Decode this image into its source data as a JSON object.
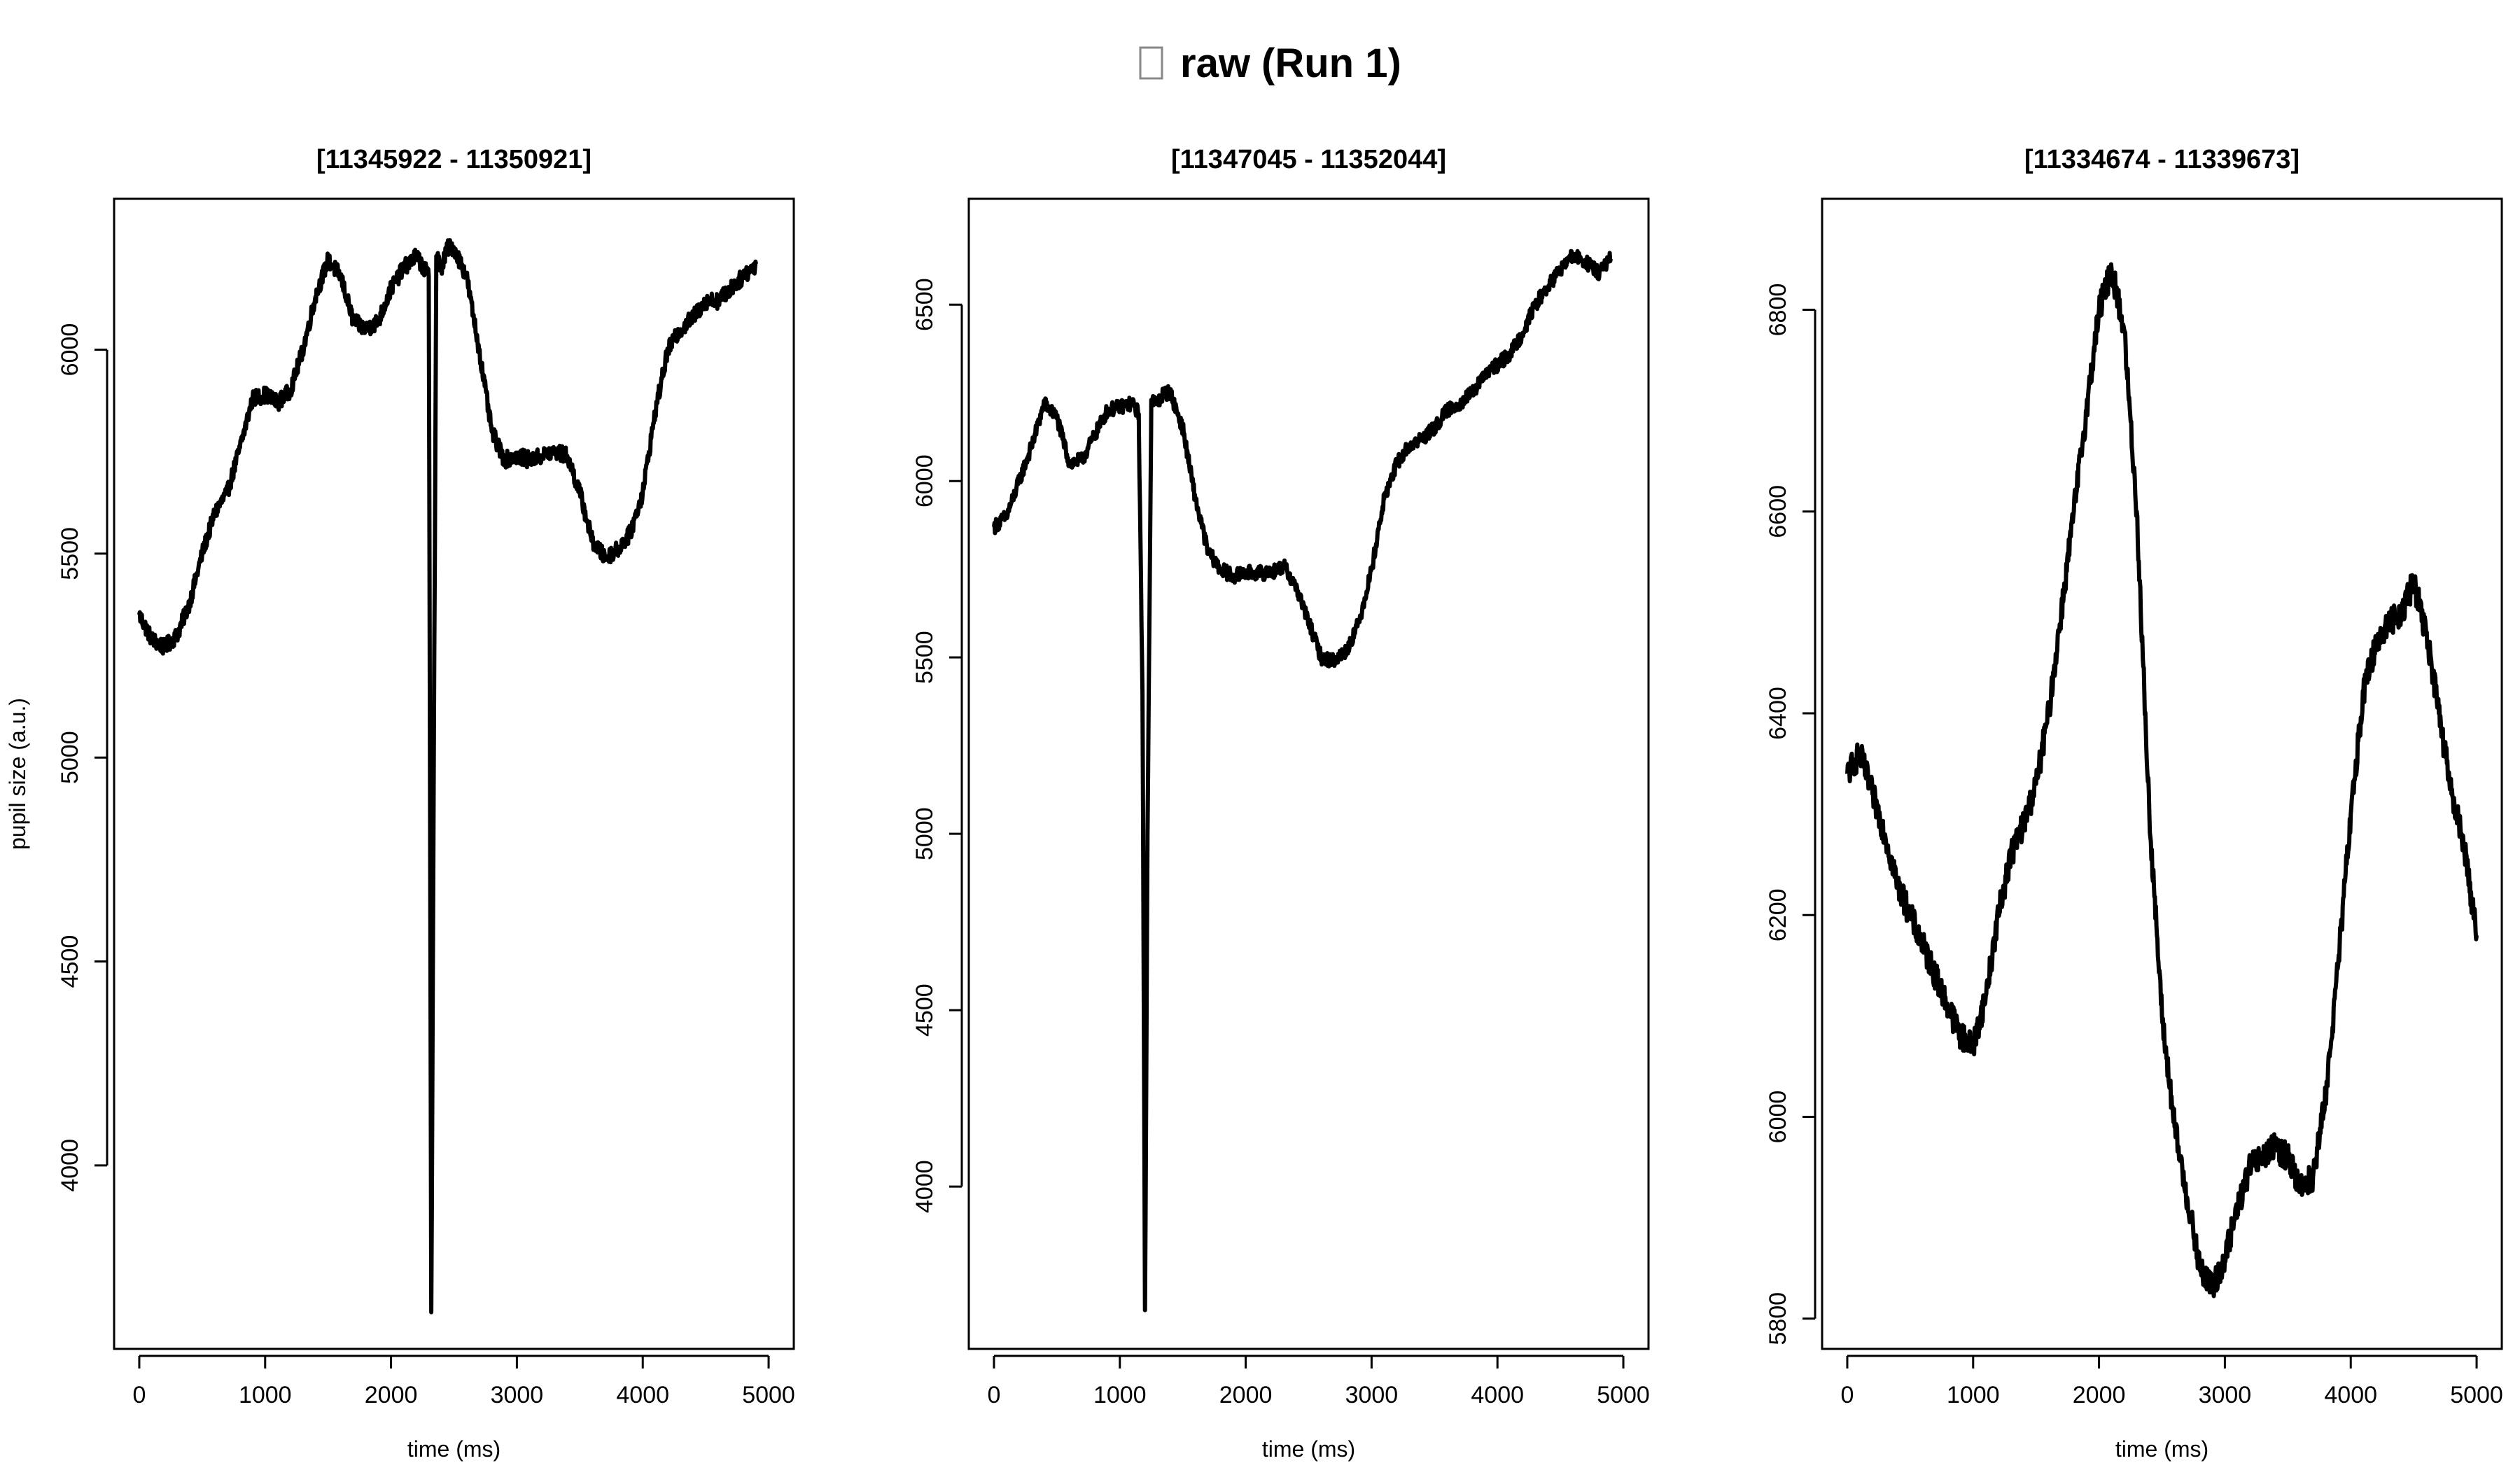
{
  "figure": {
    "title_glyph": "□",
    "title_text": "raw (Run 1)"
  },
  "colors": {
    "background": "#ffffff",
    "line": "#000000",
    "glyph_box": "#888888"
  },
  "chart_data": [
    {
      "type": "line",
      "title": "[11345922 - 11350921]",
      "xlabel": "time (ms)",
      "ylabel": "pupil size (a.u.)",
      "xlim": [
        -200,
        5200
      ],
      "ylim": [
        3550,
        6370
      ],
      "xticks": [
        0,
        1000,
        2000,
        3000,
        4000,
        5000
      ],
      "yticks": [
        4000,
        4500,
        5000,
        5500,
        6000
      ],
      "grid": false,
      "noise": 20,
      "series": [
        {
          "x": [
            0,
            100,
            200,
            300,
            400,
            500,
            600,
            700,
            800,
            900,
            1000,
            1100,
            1200,
            1300,
            1400,
            1500,
            1600,
            1700,
            1800,
            1900,
            2000,
            2100,
            2200,
            2300,
            2320,
            2340,
            2360,
            2400,
            2450,
            2500,
            2600,
            2700,
            2800,
            2900,
            3000,
            3100,
            3200,
            3300,
            3400,
            3500,
            3600,
            3700,
            3800,
            3900,
            4000,
            4100,
            4200,
            4300,
            4400,
            4500,
            4600,
            4700,
            4800,
            4900
          ],
          "y": [
            5350,
            5290,
            5270,
            5300,
            5380,
            5500,
            5600,
            5650,
            5760,
            5880,
            5890,
            5870,
            5900,
            6000,
            6130,
            6220,
            6180,
            6070,
            6050,
            6070,
            6150,
            6200,
            6230,
            6180,
            3640,
            5000,
            6230,
            6200,
            6250,
            6250,
            6180,
            6000,
            5800,
            5730,
            5740,
            5730,
            5740,
            5750,
            5740,
            5650,
            5530,
            5490,
            5510,
            5550,
            5650,
            5850,
            6000,
            6050,
            6080,
            6120,
            6120,
            6150,
            6180,
            6210
          ]
        }
      ]
    },
    {
      "type": "line",
      "title": "[11347045 - 11352044]",
      "xlabel": "time (ms)",
      "ylabel": "",
      "xlim": [
        -200,
        5200
      ],
      "ylim": [
        3540,
        6800
      ],
      "xticks": [
        0,
        1000,
        2000,
        3000,
        4000,
        5000
      ],
      "yticks": [
        4000,
        4500,
        5000,
        5500,
        6000,
        6500
      ],
      "grid": false,
      "noise": 20,
      "series": [
        {
          "x": [
            0,
            100,
            200,
            300,
            400,
            500,
            600,
            700,
            800,
            900,
            1000,
            1100,
            1150,
            1180,
            1200,
            1220,
            1250,
            1300,
            1350,
            1400,
            1500,
            1600,
            1700,
            1800,
            1900,
            2000,
            2100,
            2200,
            2300,
            2400,
            2500,
            2600,
            2700,
            2800,
            2900,
            3000,
            3100,
            3200,
            3300,
            3400,
            3500,
            3600,
            3700,
            3800,
            3900,
            4000,
            4100,
            4200,
            4300,
            4400,
            4500,
            4600,
            4700,
            4800,
            4900
          ],
          "y": [
            5870,
            5900,
            6000,
            6100,
            6220,
            6180,
            6050,
            6060,
            6130,
            6200,
            6210,
            6220,
            6190,
            5400,
            3650,
            5000,
            6230,
            6220,
            6250,
            6250,
            6150,
            5950,
            5800,
            5750,
            5730,
            5740,
            5740,
            5740,
            5760,
            5700,
            5600,
            5500,
            5490,
            5520,
            5600,
            5750,
            5950,
            6050,
            6100,
            6120,
            6150,
            6200,
            6220,
            6250,
            6300,
            6330,
            6360,
            6420,
            6500,
            6550,
            6600,
            6640,
            6620,
            6590,
            6630
          ]
        }
      ]
    },
    {
      "type": "line",
      "title": "[11334674 - 11339673]",
      "xlabel": "time (ms)",
      "ylabel": "",
      "xlim": [
        -200,
        5200
      ],
      "ylim": [
        5770,
        6910
      ],
      "xticks": [
        0,
        1000,
        2000,
        3000,
        4000,
        5000
      ],
      "yticks": [
        5800,
        6000,
        6200,
        6400,
        6600,
        6800
      ],
      "grid": false,
      "noise": 14,
      "series": [
        {
          "x": [
            0,
            100,
            200,
            300,
            400,
            500,
            600,
            700,
            800,
            900,
            1000,
            1100,
            1200,
            1300,
            1400,
            1500,
            1600,
            1700,
            1800,
            1900,
            2000,
            2100,
            2200,
            2300,
            2400,
            2500,
            2600,
            2700,
            2800,
            2900,
            3000,
            3100,
            3200,
            3300,
            3400,
            3500,
            3600,
            3700,
            3800,
            3900,
            4000,
            4100,
            4200,
            4300,
            4400,
            4500,
            4600,
            4700,
            4800,
            4900,
            5000
          ],
          "y": [
            6340,
            6360,
            6320,
            6280,
            6230,
            6200,
            6170,
            6140,
            6110,
            6080,
            6070,
            6120,
            6200,
            6260,
            6290,
            6330,
            6400,
            6500,
            6600,
            6700,
            6800,
            6840,
            6780,
            6600,
            6300,
            6100,
            5990,
            5920,
            5850,
            5830,
            5860,
            5910,
            5950,
            5960,
            5970,
            5960,
            5930,
            5940,
            6020,
            6150,
            6300,
            6420,
            6470,
            6490,
            6500,
            6530,
            6480,
            6400,
            6320,
            6270,
            6180
          ]
        }
      ]
    }
  ]
}
